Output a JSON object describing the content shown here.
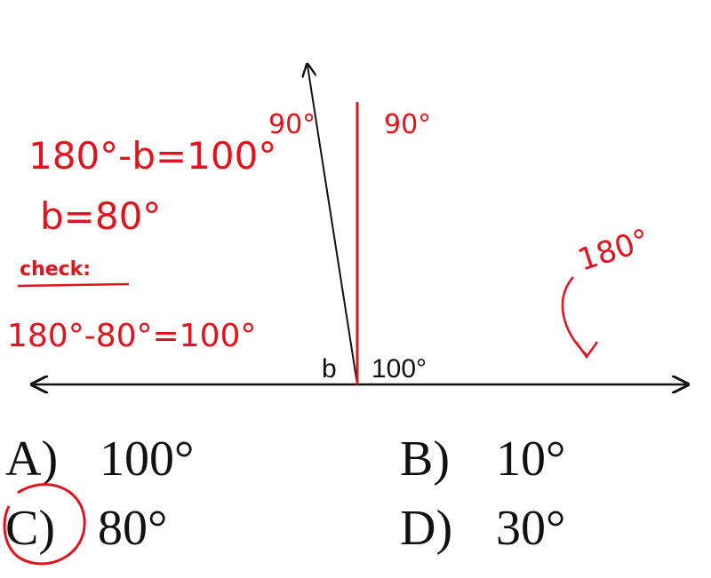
{
  "diagram": {
    "angle_b": "b",
    "angle_given": "100°"
  },
  "annotations": {
    "equation": "180°-b=100°",
    "solution": "b=80°",
    "check_label": "check:",
    "check": "180°-80°=100°",
    "right_angle_left": "90°",
    "right_angle_right": "90°",
    "straight_angle": "180°"
  },
  "choices": [
    {
      "letter": "A)",
      "text": "100°"
    },
    {
      "letter": "B)",
      "text": "10°"
    },
    {
      "letter": "C)",
      "text": "80°"
    },
    {
      "letter": "D)",
      "text": "30°"
    }
  ]
}
